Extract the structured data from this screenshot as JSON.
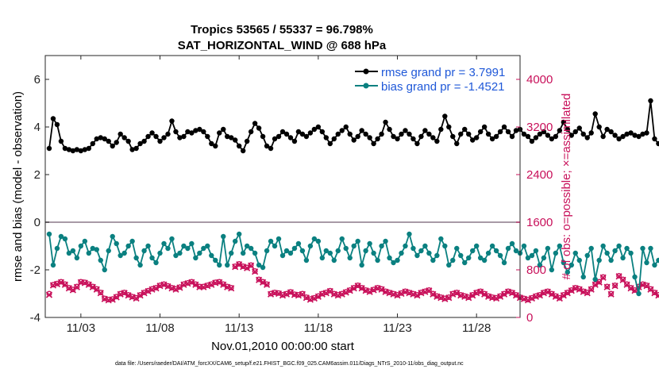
{
  "chart_data": {
    "type": "line",
    "title": "Tropics 53565 / 55337 = 96.798%",
    "subtitle": "SAT_HORIZONTAL_WIND @ 688 hPa",
    "xlabel": "Nov.01,2010 00:00:00 start",
    "ylabel": "rmse and bias (model - observation)",
    "y2label": "# of obs: o=possible; ×=assimilated",
    "x_ticks": [
      "11/03",
      "11/08",
      "11/13",
      "11/18",
      "11/23",
      "11/28"
    ],
    "y_ticks": [
      "-4",
      "-2",
      "0",
      "2",
      "4",
      "6"
    ],
    "y2_ticks": [
      "0",
      "800",
      "1600",
      "2400",
      "3200",
      "4000"
    ],
    "xlim": [
      0.75,
      30.75
    ],
    "ylim": [
      -4,
      7
    ],
    "y2lim": [
      0,
      4400
    ],
    "footer": "data file: /Users/raeder/DAI/ATM_forcXX/CAM6_setup/f.e21.FHIST_BGC.f09_025.CAM6assim.011/Diags_NTrS_2010-11/obs_diag_output.nc",
    "series": [
      {
        "name": "rmse grand pr = 3.7991",
        "color": "#000000",
        "axis": "left",
        "marker": "filled-dot",
        "values": [
          3.1,
          4.35,
          4.1,
          3.4,
          3.1,
          3.05,
          3.0,
          3.05,
          3.0,
          3.05,
          3.1,
          3.3,
          3.5,
          3.55,
          3.5,
          3.4,
          3.2,
          3.35,
          3.7,
          3.55,
          3.4,
          3.05,
          3.1,
          3.3,
          3.4,
          3.6,
          3.75,
          3.6,
          3.4,
          3.55,
          3.7,
          4.25,
          3.8,
          3.55,
          3.6,
          3.8,
          3.75,
          3.85,
          3.9,
          3.8,
          3.6,
          3.3,
          3.2,
          3.75,
          3.9,
          3.6,
          3.55,
          3.45,
          3.2,
          3.0,
          3.4,
          3.8,
          4.15,
          3.95,
          3.6,
          3.2,
          3.1,
          3.5,
          3.6,
          3.8,
          3.7,
          3.55,
          3.4,
          3.8,
          3.7,
          3.6,
          3.75,
          3.9,
          4.0,
          3.8,
          3.55,
          3.3,
          3.5,
          3.7,
          3.85,
          4.0,
          3.7,
          3.45,
          3.6,
          3.85,
          3.7,
          3.55,
          3.3,
          3.5,
          3.7,
          4.2,
          3.9,
          3.6,
          3.5,
          3.7,
          3.85,
          3.7,
          3.5,
          3.3,
          3.6,
          3.85,
          3.7,
          3.55,
          3.4,
          3.9,
          4.45,
          4.0,
          3.6,
          3.3,
          3.7,
          3.9,
          3.7,
          3.45,
          3.55,
          3.8,
          4.0,
          3.7,
          3.5,
          3.6,
          3.8,
          4.0,
          3.8,
          3.6,
          3.85,
          3.9,
          3.7,
          3.6,
          3.4,
          3.55,
          3.7,
          3.8,
          3.65,
          3.5,
          3.6,
          3.85,
          4.2,
          3.9,
          3.65,
          3.8,
          3.95,
          3.7,
          3.55,
          3.75,
          4.55,
          4.0,
          3.6,
          3.9,
          3.8,
          3.65,
          3.5,
          3.6,
          3.7,
          3.75,
          3.65,
          3.6,
          3.7,
          3.75,
          5.1,
          3.5,
          3.3,
          3.0,
          3.1,
          3.15,
          3.3,
          3.2,
          3.4,
          3.5,
          3.35,
          3.6,
          3.55,
          3.4,
          3.6,
          3.5,
          3.4,
          3.5,
          3.3,
          3.55,
          3.7,
          3.6,
          3.75,
          3.9,
          3.5,
          3.3,
          3.35,
          3.1,
          3.15,
          3.4,
          3.6,
          3.9,
          3.7,
          3.5,
          3.6,
          3.85,
          4.2,
          3.8,
          3.7,
          3.6,
          4.05,
          4.4,
          3.9,
          3.6,
          3.8,
          4.2,
          4.45,
          3.95,
          3.4,
          3.15
        ]
      },
      {
        "name": "bias grand pr = -1.4521",
        "color": "#0a8080",
        "axis": "left",
        "marker": "filled-dot",
        "values": [
          -0.5,
          -1.8,
          -1.1,
          -0.6,
          -0.7,
          -1.3,
          -1.2,
          -1.5,
          -1.0,
          -0.8,
          -1.3,
          -1.1,
          -1.15,
          -1.6,
          -2.0,
          -1.2,
          -0.6,
          -0.9,
          -1.4,
          -1.3,
          -1.0,
          -0.8,
          -1.5,
          -1.8,
          -1.2,
          -1.0,
          -1.5,
          -1.7,
          -1.3,
          -0.9,
          -1.1,
          -0.7,
          -1.4,
          -1.3,
          -1.0,
          -1.1,
          -0.9,
          -1.5,
          -1.3,
          -1.1,
          -1.0,
          -1.4,
          -1.6,
          -1.8,
          -0.6,
          -1.8,
          -1.3,
          -0.8,
          -0.5,
          -1.3,
          -1.0,
          -1.1,
          -1.3,
          -1.8,
          -1.9,
          -1.2,
          -0.8,
          -1.0,
          -0.7,
          -1.4,
          -1.2,
          -1.3,
          -1.1,
          -0.9,
          -1.2,
          -1.6,
          -1.0,
          -0.7,
          -0.8,
          -1.5,
          -1.2,
          -1.3,
          -1.6,
          -1.2,
          -0.7,
          -1.1,
          -1.5,
          -1.0,
          -0.8,
          -1.8,
          -1.2,
          -0.9,
          -1.3,
          -1.6,
          -1.0,
          -0.8,
          -1.5,
          -1.7,
          -1.6,
          -1.3,
          -1.0,
          -0.5,
          -1.1,
          -1.4,
          -1.2,
          -1.0,
          -1.3,
          -1.6,
          -1.4,
          -0.7,
          -1.0,
          -1.8,
          -1.6,
          -1.1,
          -1.4,
          -1.7,
          -1.5,
          -1.2,
          -1.0,
          -1.5,
          -1.6,
          -1.3,
          -1.0,
          -1.2,
          -1.4,
          -1.7,
          -1.1,
          -0.9,
          -1.2,
          -1.3,
          -1.0,
          -1.5,
          -1.4,
          -1.2,
          -1.8,
          -1.5,
          -1.1,
          -2.0,
          -1.3,
          -1.0,
          -1.7,
          -2.1,
          -1.8,
          -1.3,
          -1.6,
          -2.3,
          -1.4,
          -1.1,
          -2.4,
          -1.6,
          -1.0,
          -1.3,
          -1.6,
          -1.2,
          -1.0,
          -1.5,
          -1.1,
          -1.3,
          -2.3,
          -3.0,
          -1.1,
          -1.7,
          -1.1,
          -1.8,
          -1.6,
          -2.0,
          -1.3,
          -1.0,
          -1.6,
          -1.2,
          -0.8,
          -1.3,
          -1.5,
          -1.1,
          -0.4,
          -0.5,
          -1.2,
          -1.6,
          -1.3,
          -1.0,
          -1.5,
          -1.3,
          -0.8,
          -1.2,
          -1.4,
          -1.6,
          -1.3,
          -1.0,
          -1.5,
          -1.8,
          -1.6,
          -1.2,
          -0.8,
          -1.3,
          -1.5,
          -1.7,
          -1.2,
          -1.4,
          -2.2,
          -2.5,
          -2.0,
          -1.7,
          -1.6,
          -1.4,
          -2.0,
          -2.3,
          -2.5,
          -1.8,
          -0.2
        ]
      },
      {
        "name": "possible obs",
        "color": "#c8105a",
        "axis": "right",
        "marker": "circle",
        "values": [
          400,
          550,
          570,
          600,
          560,
          500,
          470,
          520,
          600,
          590,
          560,
          520,
          480,
          420,
          320,
          300,
          310,
          350,
          400,
          420,
          380,
          350,
          330,
          380,
          420,
          450,
          480,
          500,
          540,
          560,
          530,
          500,
          480,
          510,
          560,
          580,
          600,
          560,
          520,
          520,
          540,
          560,
          590,
          600,
          560,
          520,
          500,
          860,
          900,
          860,
          840,
          880,
          780,
          640,
          600,
          560,
          400,
          420,
          410,
          380,
          400,
          430,
          390,
          380,
          400,
          340,
          310,
          330,
          360,
          400,
          420,
          450,
          400,
          380,
          400,
          430,
          460,
          500,
          540,
          500,
          460,
          440,
          470,
          500,
          480,
          440,
          420,
          400,
          380,
          410,
          440,
          420,
          400,
          380,
          420,
          440,
          460,
          400,
          360,
          340,
          320,
          340,
          400,
          420,
          380,
          360,
          340,
          380,
          420,
          440,
          400,
          360,
          340,
          330,
          360,
          400,
          440,
          420,
          380,
          340,
          320,
          300,
          330,
          360,
          380,
          420,
          440,
          400,
          360,
          330,
          380,
          420,
          460,
          500,
          480,
          440,
          420,
          480,
          560,
          600,
          680,
          520,
          400,
          540,
          700,
          640,
          560,
          500,
          460,
          520,
          560,
          540,
          480,
          420,
          380,
          330,
          300,
          340,
          420,
          500,
          560,
          520,
          480,
          440,
          400,
          360,
          380,
          420,
          480,
          540,
          560,
          500,
          440,
          400,
          360,
          320,
          300,
          340,
          380,
          420,
          400,
          360,
          330,
          300,
          320,
          360,
          400,
          440,
          480,
          520,
          480,
          440,
          400,
          380,
          420,
          460,
          500,
          540,
          560,
          480,
          400,
          360,
          320,
          300,
          340,
          380,
          420,
          440,
          480,
          460,
          420,
          380,
          360,
          400,
          460,
          500,
          480,
          320,
          300,
          0
        ]
      },
      {
        "name": "assimilated obs",
        "color": "#c8105a",
        "axis": "right",
        "marker": "x",
        "values": [
          380,
          540,
          560,
          590,
          550,
          490,
          460,
          510,
          590,
          580,
          550,
          510,
          470,
          410,
          310,
          290,
          300,
          340,
          390,
          410,
          370,
          340,
          320,
          370,
          410,
          440,
          470,
          490,
          530,
          550,
          520,
          490,
          470,
          500,
          550,
          570,
          590,
          550,
          510,
          510,
          530,
          550,
          580,
          590,
          550,
          510,
          490,
          850,
          890,
          850,
          830,
          870,
          770,
          630,
          590,
          550,
          390,
          410,
          400,
          370,
          390,
          420,
          380,
          370,
          390,
          330,
          300,
          320,
          350,
          390,
          410,
          440,
          390,
          370,
          390,
          420,
          450,
          490,
          530,
          490,
          450,
          430,
          460,
          490,
          470,
          430,
          410,
          390,
          370,
          400,
          430,
          410,
          390,
          370,
          410,
          430,
          450,
          390,
          350,
          330,
          310,
          330,
          390,
          410,
          370,
          350,
          330,
          370,
          410,
          430,
          390,
          350,
          330,
          320,
          350,
          390,
          430,
          410,
          370,
          330,
          310,
          290,
          320,
          350,
          370,
          410,
          430,
          390,
          350,
          320,
          370,
          410,
          450,
          490,
          470,
          430,
          410,
          470,
          550,
          590,
          670,
          510,
          390,
          530,
          690,
          630,
          550,
          490,
          450,
          510,
          550,
          530,
          470,
          410,
          370,
          320,
          290,
          330,
          410,
          490,
          550,
          510,
          470,
          430,
          390,
          350,
          370,
          410,
          470,
          530,
          550,
          490,
          430,
          390,
          350,
          310,
          290,
          330,
          370,
          410,
          390,
          350,
          320,
          290,
          310,
          350,
          390,
          430,
          470,
          510,
          470,
          430,
          390,
          370,
          410,
          450,
          490,
          530,
          550,
          470,
          390,
          350,
          310,
          290,
          330,
          370,
          410,
          430,
          470,
          450,
          410,
          370,
          350,
          390,
          450,
          490,
          470,
          310,
          290,
          0
        ]
      }
    ]
  }
}
